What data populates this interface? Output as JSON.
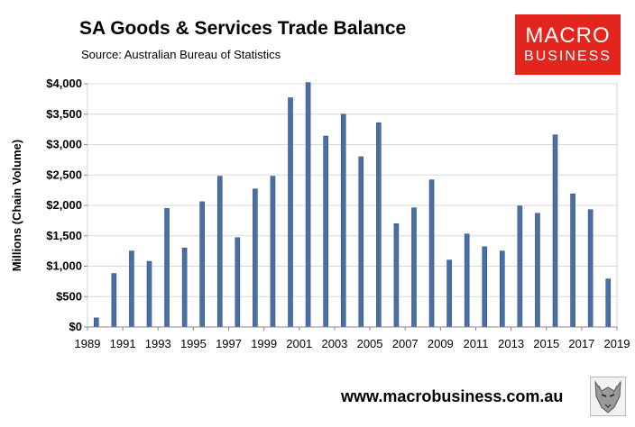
{
  "header": {
    "title": "SA Goods & Services Trade Balance",
    "source": "Source:  Australian Bureau of Statistics"
  },
  "logo": {
    "line1": "MACRO",
    "line2": "BUSINESS",
    "color": "#e3251d"
  },
  "footer": {
    "website": "www.macrobusiness.com.au",
    "icon": "wolf-icon"
  },
  "chart_data": {
    "type": "bar",
    "ylabel": "Millions (Chain Volume)",
    "ylim": [
      0,
      4000
    ],
    "yticks": [
      0,
      500,
      1000,
      1500,
      2000,
      2500,
      3000,
      3500,
      4000
    ],
    "ytick_labels": [
      "$0",
      "$500",
      "$1,000",
      "$1,500",
      "$2,000",
      "$2,500",
      "$3,000",
      "$3,500",
      "$4,000"
    ],
    "xlim": [
      1989,
      2019
    ],
    "xtick_labels": [
      "1989",
      "1991",
      "1993",
      "1995",
      "1997",
      "1999",
      "2001",
      "2003",
      "2005",
      "2007",
      "2009",
      "2011",
      "2013",
      "2015",
      "2017",
      "2019"
    ],
    "grid": "horizontal",
    "bar_color": "#4a6fa5",
    "x": [
      1990,
      1991,
      1992,
      1993,
      1994,
      1995,
      1996,
      1997,
      1998,
      1999,
      2000,
      2001,
      2002,
      2003,
      2004,
      2005,
      2006,
      2007,
      2008,
      2009,
      2010,
      2011,
      2012,
      2013,
      2014,
      2015,
      2016,
      2017,
      2018,
      2019
    ],
    "values": [
      150,
      880,
      1250,
      1080,
      1950,
      1300,
      2060,
      2480,
      1470,
      2270,
      2480,
      3770,
      4020,
      3140,
      3500,
      2800,
      3360,
      1700,
      1960,
      2420,
      1100,
      1530,
      1320,
      1250,
      1990,
      1870,
      3160,
      2190,
      1930,
      790
    ]
  }
}
